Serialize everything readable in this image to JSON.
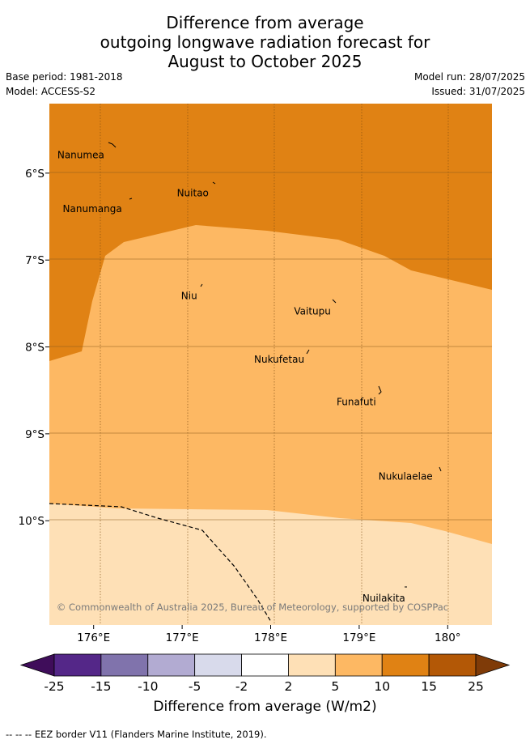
{
  "title": {
    "line1": "Difference from average",
    "line2": "outgoing longwave radiation forecast for",
    "line3": "August to October 2025"
  },
  "meta": {
    "base_period": "Base period: 1981-2018",
    "model": "Model: ACCESS-S2",
    "model_run": "Model run: 28/07/2025",
    "issued": "Issued: 31/07/2025"
  },
  "map": {
    "extent": {
      "lon": [
        175.5,
        180.5
      ],
      "lat": [
        -11.2,
        -5.2
      ]
    },
    "lon_ticks": [
      {
        "value": 176,
        "label": "176°E"
      },
      {
        "value": 177,
        "label": "177°E"
      },
      {
        "value": 178,
        "label": "178°E"
      },
      {
        "value": 179,
        "label": "179°E"
      },
      {
        "value": 180,
        "label": "180°"
      }
    ],
    "lat_ticks": [
      {
        "value": -6,
        "label": "6°S"
      },
      {
        "value": -7,
        "label": "7°S"
      },
      {
        "value": -8,
        "label": "8°S"
      },
      {
        "value": -9,
        "label": "9°S"
      },
      {
        "value": -10,
        "label": "10°S"
      }
    ],
    "fill_colors": {
      "c10_15": "#e08214",
      "c5_10": "#fdb863",
      "c2_5": "#fee0b6"
    },
    "places": [
      {
        "name": "Nanumea",
        "lon": 176.12,
        "lat": -5.68
      },
      {
        "name": "Nuitao",
        "lon": 177.3,
        "lat": -6.12
      },
      {
        "name": "Nanumanga",
        "lon": 176.32,
        "lat": -6.3
      },
      {
        "name": "Niu",
        "lon": 177.17,
        "lat": -7.3
      },
      {
        "name": "Vaitupu",
        "lon": 178.68,
        "lat": -7.48
      },
      {
        "name": "Nukufetau",
        "lon": 178.38,
        "lat": -8.03
      },
      {
        "name": "Funafuti",
        "lon": 179.19,
        "lat": -8.52
      },
      {
        "name": "Nukulaelae",
        "lon": 179.83,
        "lat": -9.38
      },
      {
        "name": "Nuilakita",
        "lon": 179.52,
        "lat": -10.78
      }
    ],
    "copyright": "© Commonwealth of Australia 2025, Bureau of Meteorology, supported by COSPPac"
  },
  "colorbar": {
    "colors": [
      "#3f0d5a",
      "#542788",
      "#8073ac",
      "#b2abd2",
      "#d8daeb",
      "#ffffff",
      "#fee0b6",
      "#fdb863",
      "#e08214",
      "#b35806",
      "#7f3b08"
    ],
    "ticks": [
      "-25",
      "-15",
      "-10",
      "-5",
      "-2",
      "2",
      "5",
      "10",
      "15",
      "25"
    ],
    "label": "Difference from average (W/m2)"
  },
  "legend_note": "-- -- -- EEZ border V11 (Flanders Marine Institute, 2019)."
}
